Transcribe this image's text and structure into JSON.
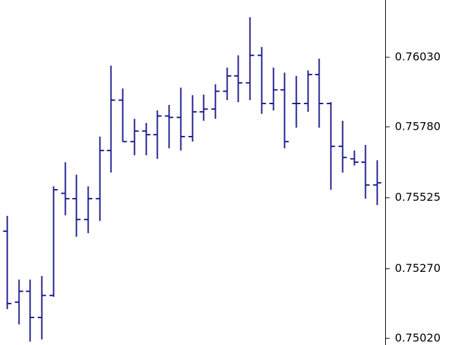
{
  "chart_data": {
    "type": "ohlc",
    "categories": [
      null,
      null,
      null,
      null,
      null,
      null,
      null,
      null,
      null,
      null,
      null,
      null,
      null,
      null,
      null,
      null,
      null,
      null,
      null,
      null,
      null,
      null,
      null,
      null,
      null,
      null,
      null,
      null,
      null,
      null,
      null,
      null,
      null
    ],
    "color": "#1c1c8c",
    "open": [
      0.75405,
      0.7515,
      0.75189,
      0.75095,
      0.75174,
      0.75541,
      0.75522,
      0.75447,
      0.75522,
      0.75695,
      0.75876,
      0.75727,
      0.75765,
      0.75752,
      0.75819,
      0.75814,
      0.75745,
      0.75834,
      0.75844,
      0.75908,
      0.75963,
      0.75938,
      0.76037,
      0.75864,
      0.75913,
      0.75864,
      0.75864,
      0.75968,
      0.75864,
      0.7571,
      0.75665,
      0.75653,
      0.75571
    ],
    "high": [
      0.7546,
      0.75231,
      0.75231,
      0.75244,
      0.75566,
      0.75653,
      0.75608,
      0.75566,
      0.75745,
      0.76,
      0.75918,
      0.75809,
      0.75794,
      0.75839,
      0.75859,
      0.75921,
      0.75894,
      0.75896,
      0.75933,
      0.75993,
      0.76037,
      0.76174,
      0.76067,
      0.75993,
      0.75975,
      0.75963,
      0.75983,
      0.76025,
      0.75869,
      0.75802,
      0.75695,
      0.75715,
      0.7566
    ],
    "low": [
      0.75125,
      0.7507,
      0.75008,
      0.75016,
      0.75169,
      0.75462,
      0.75385,
      0.75398,
      0.75442,
      0.75616,
      0.75727,
      0.75678,
      0.75678,
      0.75665,
      0.75703,
      0.75695,
      0.75727,
      0.75802,
      0.75809,
      0.75876,
      0.75869,
      0.75876,
      0.75827,
      0.75839,
      0.75703,
      0.75777,
      0.75834,
      0.75777,
      0.75554,
      0.75616,
      0.75641,
      0.75522,
      0.75499
    ],
    "close": [
      0.75145,
      0.75189,
      0.75095,
      0.75174,
      0.75554,
      0.75522,
      0.75447,
      0.75522,
      0.75695,
      0.75876,
      0.75727,
      0.75765,
      0.75752,
      0.75819,
      0.75814,
      0.75745,
      0.75834,
      0.75844,
      0.75908,
      0.75963,
      0.75938,
      0.76037,
      0.75864,
      0.75913,
      0.75727,
      0.75864,
      0.75968,
      0.75864,
      0.7571,
      0.7567,
      0.75653,
      0.75571,
      0.75579
    ],
    "ylim": [
      0.74996,
      0.76236
    ],
    "yticks": [
      {
        "value": 0.7603,
        "label": "0.76030"
      },
      {
        "value": 0.7578,
        "label": "0.75780"
      },
      0.75525,
      {
        "value": 0.7527,
        "label": "0.75270"
      },
      {
        "value": 0.7502,
        "label": "0.75020"
      }
    ],
    "grid": false
  }
}
